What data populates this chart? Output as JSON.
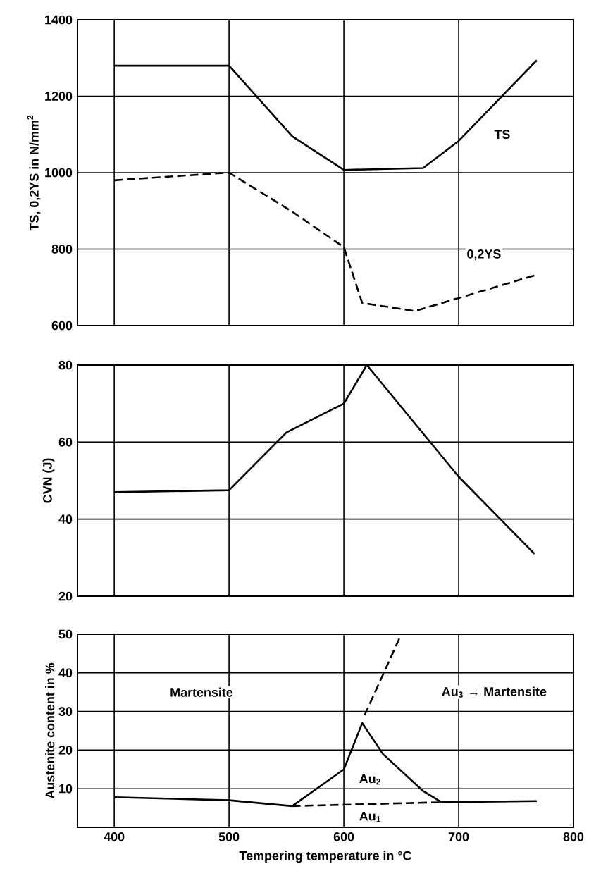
{
  "chart_data": [
    {
      "type": "line",
      "ylabel": "TS, 0,2YS  in N/mm$^{2}$",
      "xlim": [
        368,
        800
      ],
      "ylim": [
        600,
        1400
      ],
      "xticks": [
        400,
        500,
        600,
        700,
        800
      ],
      "yticks": [
        600,
        800,
        1000,
        1200,
        1400
      ],
      "grid": true,
      "tick_labels": "y",
      "series": [
        {
          "color": "#000000",
          "line_style": "solid",
          "x": [
            400,
            500,
            555,
            600,
            669,
            700,
            768
          ],
          "values": [
            1280,
            1280,
            1095,
            1007,
            1012,
            1083,
            1294
          ]
        },
        {
          "color": "#000000",
          "line_style": "dashed",
          "x": [
            400,
            500,
            555,
            600,
            616,
            662,
            768
          ],
          "values": [
            980,
            1000,
            898,
            805,
            659,
            638,
            733
          ]
        }
      ],
      "annotations": [
        {
          "text": "TS",
          "x": 738,
          "y": 1100
        },
        {
          "text": "0,2YS",
          "x": 722,
          "y": 785
        }
      ]
    },
    {
      "type": "line",
      "ylabel": "CVN (J)",
      "xlim": [
        368,
        800
      ],
      "ylim": [
        20,
        80
      ],
      "xticks": [
        400,
        500,
        600,
        700,
        800
      ],
      "yticks": [
        20,
        40,
        60,
        80
      ],
      "grid": true,
      "tick_labels": "y",
      "series": [
        {
          "color": "#000000",
          "line_style": "solid",
          "x": [
            400,
            500,
            550,
            600,
            620,
            700,
            766
          ],
          "values": [
            47,
            47.5,
            62.5,
            70,
            80,
            51,
            31
          ]
        }
      ]
    },
    {
      "type": "line",
      "xlabel": "Tempering temperature in °C",
      "ylabel": "Austenite content in %",
      "xlim": [
        368,
        800
      ],
      "ylim": [
        0,
        50
      ],
      "xticks": [
        400,
        500,
        600,
        700,
        800
      ],
      "yticks": [
        10,
        20,
        30,
        40,
        50
      ],
      "grid": true,
      "series": [
        {
          "color": "#000000",
          "line_style": "solid",
          "x": [
            400,
            500,
            555
          ],
          "values": [
            7.8,
            7,
            5.5
          ]
        },
        {
          "color": "#000000",
          "line_style": "dashed",
          "x": [
            555,
            685
          ],
          "values": [
            5.5,
            6.5
          ]
        },
        {
          "color": "#000000",
          "line_style": "solid",
          "x": [
            685,
            768
          ],
          "values": [
            6.5,
            6.8
          ]
        },
        {
          "color": "#000000",
          "line_style": "solid",
          "x": [
            555,
            600,
            616,
            634,
            669,
            685
          ],
          "values": [
            5.5,
            15,
            27,
            19,
            9.4,
            6.5
          ]
        },
        {
          "color": "#000000",
          "line_style": "dashed",
          "x": [
            618,
            650
          ],
          "values": [
            29,
            50
          ]
        }
      ],
      "annotations": [
        "Martensite",
        "Au$_{3}$ → Martensite",
        {
          "text": "Au$_{2}$",
          "x": 623,
          "y": 12.4
        },
        {
          "text": "Au$_{1}$",
          "x": 623,
          "y": 2.7
        }
      ]
    }
  ]
}
